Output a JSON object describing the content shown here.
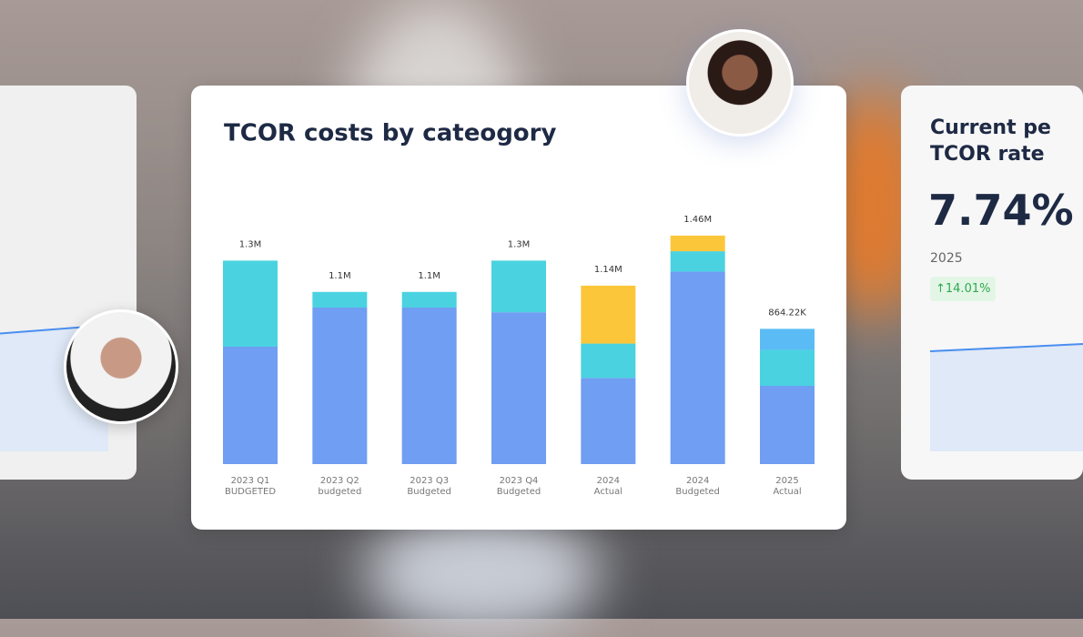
{
  "chart_data": {
    "type": "stacked-bar",
    "title": "TCOR costs by cateogory",
    "categories": [
      [
        "2023 Q1",
        "BUDGETED"
      ],
      [
        "2023 Q2",
        "budgeted"
      ],
      [
        "2023 Q3",
        "Budgeted"
      ],
      [
        "2023 Q4",
        "Budgeted"
      ],
      [
        "2024",
        "Actual"
      ],
      [
        "2024",
        "Budgeted"
      ],
      [
        "2025",
        "Actual"
      ]
    ],
    "series": [
      {
        "color": "#6f9ef2",
        "values": [
          750000,
          1000000,
          1000000,
          970000,
          550000,
          1230000,
          500000
        ]
      },
      {
        "color": "#4ad2e0",
        "values": [
          550000,
          100000,
          100000,
          330000,
          220000,
          130000,
          230000
        ]
      },
      {
        "color": "#fcc63a",
        "values": [
          null,
          null,
          null,
          null,
          370000,
          100000,
          null
        ]
      },
      {
        "color": "#5bbcf5",
        "values": [
          null,
          null,
          null,
          null,
          null,
          null,
          134220
        ]
      }
    ],
    "totals": [
      1300000,
      1100000,
      1100000,
      1300000,
      1140000,
      1460000,
      864220
    ],
    "total_labels": [
      "1.3M",
      "1.1M",
      "1.1M",
      "1.3M",
      "1.14M",
      "1.46M",
      "864.22K"
    ],
    "ylim": [
      0,
      1500000
    ]
  },
  "side_card": {
    "title_lines": [
      "Current pe",
      "TCOR rate"
    ],
    "value": "7.74%",
    "year": "2025",
    "change": "↑14.01%"
  }
}
